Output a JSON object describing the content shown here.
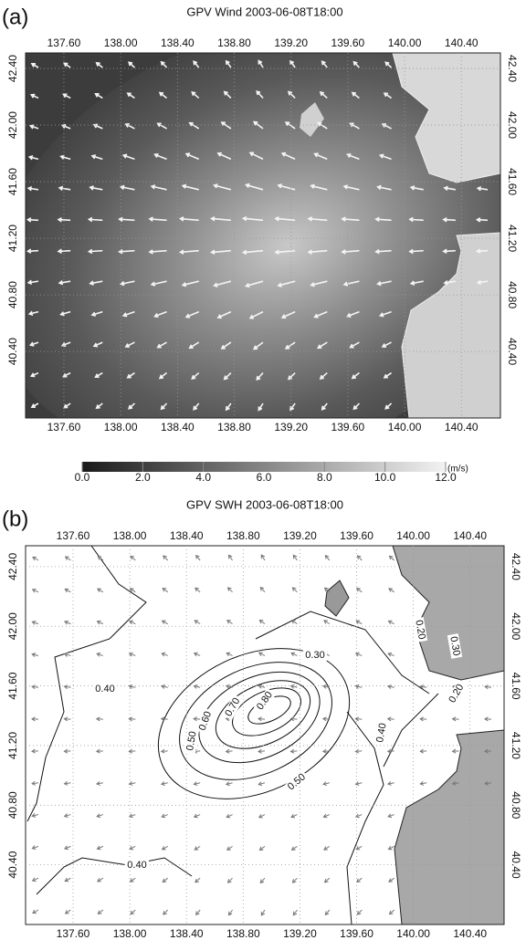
{
  "panels": [
    {
      "label": "(a)",
      "title": "GPV Wind 2003-06-08T18:00",
      "xlim": [
        137.33,
        140.675
      ],
      "ylim": [
        39.93,
        42.51
      ],
      "xticks": [
        {
          "value": 137.6,
          "label": "137.60"
        },
        {
          "value": 138.0,
          "label": "138.00"
        },
        {
          "value": 138.4,
          "label": "138.40"
        },
        {
          "value": 138.8,
          "label": "138.80"
        },
        {
          "value": 139.2,
          "label": "139.20"
        },
        {
          "value": 139.6,
          "label": "139.60"
        },
        {
          "value": 140.0,
          "label": "140.00"
        },
        {
          "value": 140.4,
          "label": "140.40"
        }
      ],
      "yticks": [
        {
          "value": 40.4,
          "label": "40.40"
        },
        {
          "value": 40.8,
          "label": "40.80"
        },
        {
          "value": 41.2,
          "label": "41.20"
        },
        {
          "value": 41.6,
          "label": "41.60"
        },
        {
          "value": 42.0,
          "label": "42.00"
        },
        {
          "value": 42.4,
          "label": "42.40"
        }
      ],
      "colorbar": {
        "ticks": [
          {
            "value": 0,
            "label": "0.0"
          },
          {
            "value": 2,
            "label": "2.0"
          },
          {
            "value": 4,
            "label": "4.0"
          },
          {
            "value": 6,
            "label": "6.0"
          },
          {
            "value": 8,
            "label": "8.0"
          },
          {
            "value": 10,
            "label": "10.0"
          },
          {
            "value": 12,
            "label": "12.0"
          }
        ],
        "unit": "(m/s)"
      }
    },
    {
      "label": "(b)",
      "title": "GPV SWH 2003-06-08T18:00",
      "xlim": [
        137.265,
        140.64
      ],
      "ylim": [
        40.0,
        42.54
      ],
      "xticks": [
        {
          "value": 137.6,
          "label": "137.60"
        },
        {
          "value": 138.0,
          "label": "138.00"
        },
        {
          "value": 138.4,
          "label": "138.40"
        },
        {
          "value": 138.8,
          "label": "138.80"
        },
        {
          "value": 139.2,
          "label": "139.20"
        },
        {
          "value": 139.6,
          "label": "139.60"
        },
        {
          "value": 140.0,
          "label": "140.00"
        },
        {
          "value": 140.4,
          "label": "140.40"
        }
      ],
      "yticks": [
        {
          "value": 40.4,
          "label": "40.40"
        },
        {
          "value": 40.8,
          "label": "40.80"
        },
        {
          "value": 41.2,
          "label": "41.20"
        },
        {
          "value": 41.6,
          "label": "41.60"
        },
        {
          "value": 42.0,
          "label": "42.00"
        },
        {
          "value": 42.4,
          "label": "42.40"
        }
      ],
      "contour_labels": [
        {
          "value": 0.3,
          "label": "0.30"
        },
        {
          "value": 0.4,
          "label": "0.40"
        },
        {
          "value": 0.6,
          "label": "0.60"
        },
        {
          "value": 0.7,
          "label": "0.70"
        },
        {
          "value": 0.8,
          "label": "0.80"
        },
        {
          "value": 0.5,
          "label": "0.50"
        },
        {
          "value": 0.5,
          "label": "0.50"
        },
        {
          "value": 0.4,
          "label": "0.40"
        },
        {
          "value": 0.2,
          "label": "0.20"
        },
        {
          "value": 0.3,
          "label": "0.30"
        },
        {
          "value": 0.2,
          "label": "0.20"
        },
        {
          "value": 0.4,
          "label": "0.40"
        }
      ]
    }
  ]
}
